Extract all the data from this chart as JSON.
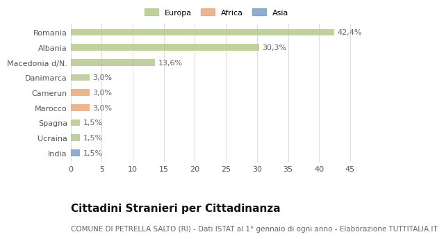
{
  "categories": [
    "Romania",
    "Albania",
    "Macedonia d/N.",
    "Danimarca",
    "Camerun",
    "Marocco",
    "Spagna",
    "Ucraina",
    "India"
  ],
  "values": [
    42.4,
    30.3,
    13.6,
    3.0,
    3.0,
    3.0,
    1.5,
    1.5,
    1.5
  ],
  "labels": [
    "42,4%",
    "30,3%",
    "13,6%",
    "3,0%",
    "3,0%",
    "3,0%",
    "1,5%",
    "1,5%",
    "1,5%"
  ],
  "colors": [
    "#b5c98e",
    "#b5c98e",
    "#b5c98e",
    "#b5c98e",
    "#e8a87c",
    "#e8a87c",
    "#b5c98e",
    "#b5c98e",
    "#7b9fc7"
  ],
  "legend": [
    {
      "label": "Europa",
      "color": "#b5c98e"
    },
    {
      "label": "Africa",
      "color": "#e8a87c"
    },
    {
      "label": "Asia",
      "color": "#7b9fc7"
    }
  ],
  "xlim": [
    0,
    47
  ],
  "xticks": [
    0,
    5,
    10,
    15,
    20,
    25,
    30,
    35,
    40,
    45
  ],
  "title": "Cittadini Stranieri per Cittadinanza",
  "subtitle": "COMUNE DI PETRELLA SALTO (RI) - Dati ISTAT al 1° gennaio di ogni anno - Elaborazione TUTTITALIA.IT",
  "background_color": "#ffffff",
  "bar_height": 0.45,
  "grid_color": "#dddddd",
  "title_fontsize": 11,
  "subtitle_fontsize": 7.5,
  "label_fontsize": 8,
  "tick_fontsize": 8
}
